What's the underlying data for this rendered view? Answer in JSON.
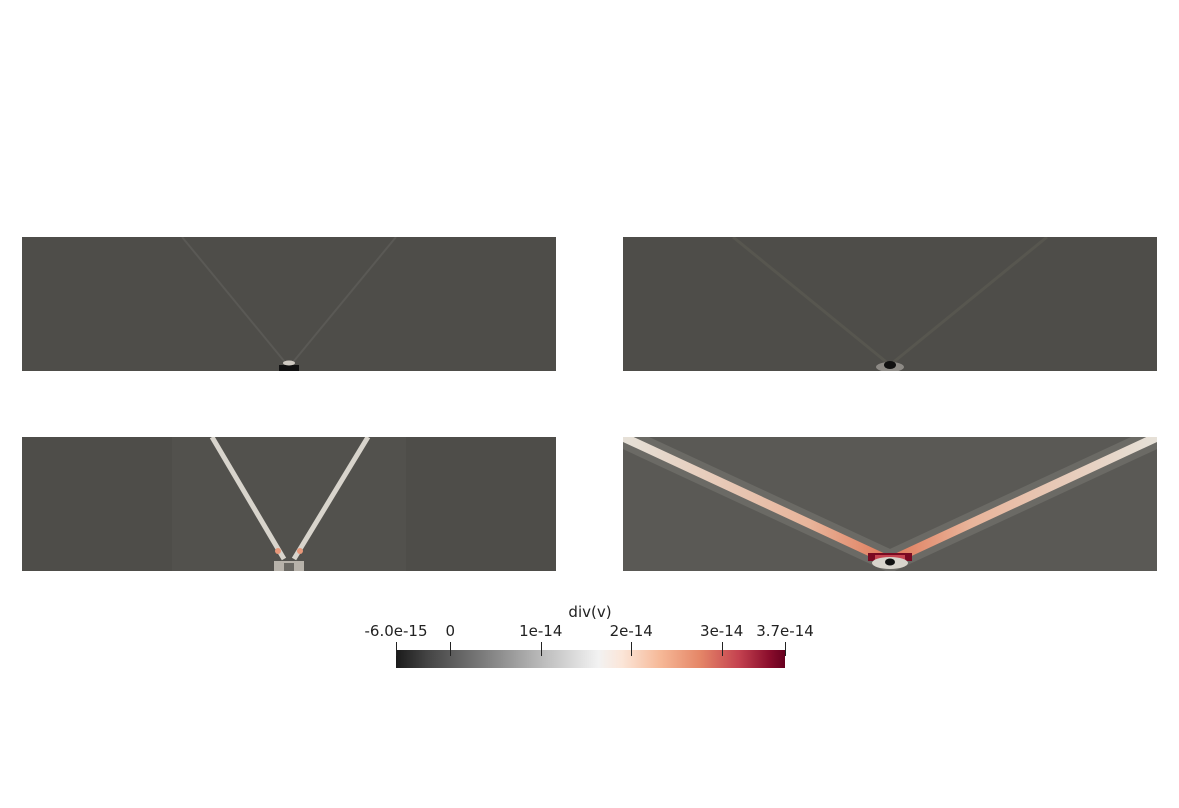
{
  "colorbar": {
    "title": "div(v)",
    "ticks": [
      {
        "label": "-6.0e-15",
        "value": -6e-15
      },
      {
        "label": "0",
        "value": 0
      },
      {
        "label": "1e-14",
        "value": 1e-14
      },
      {
        "label": "2e-14",
        "value": 2e-14
      },
      {
        "label": "3e-14",
        "value": 3e-14
      },
      {
        "label": "3.7e-14",
        "value": 3.7e-14
      }
    ],
    "range": [
      -6e-15,
      3.7e-14
    ]
  },
  "colors": {
    "background_field": "#4e4d49",
    "wave_light": "#d8d4cc",
    "wave_hot": "#e8987a",
    "source_dark": "#111111",
    "source_hot": "#7a0a22"
  }
}
